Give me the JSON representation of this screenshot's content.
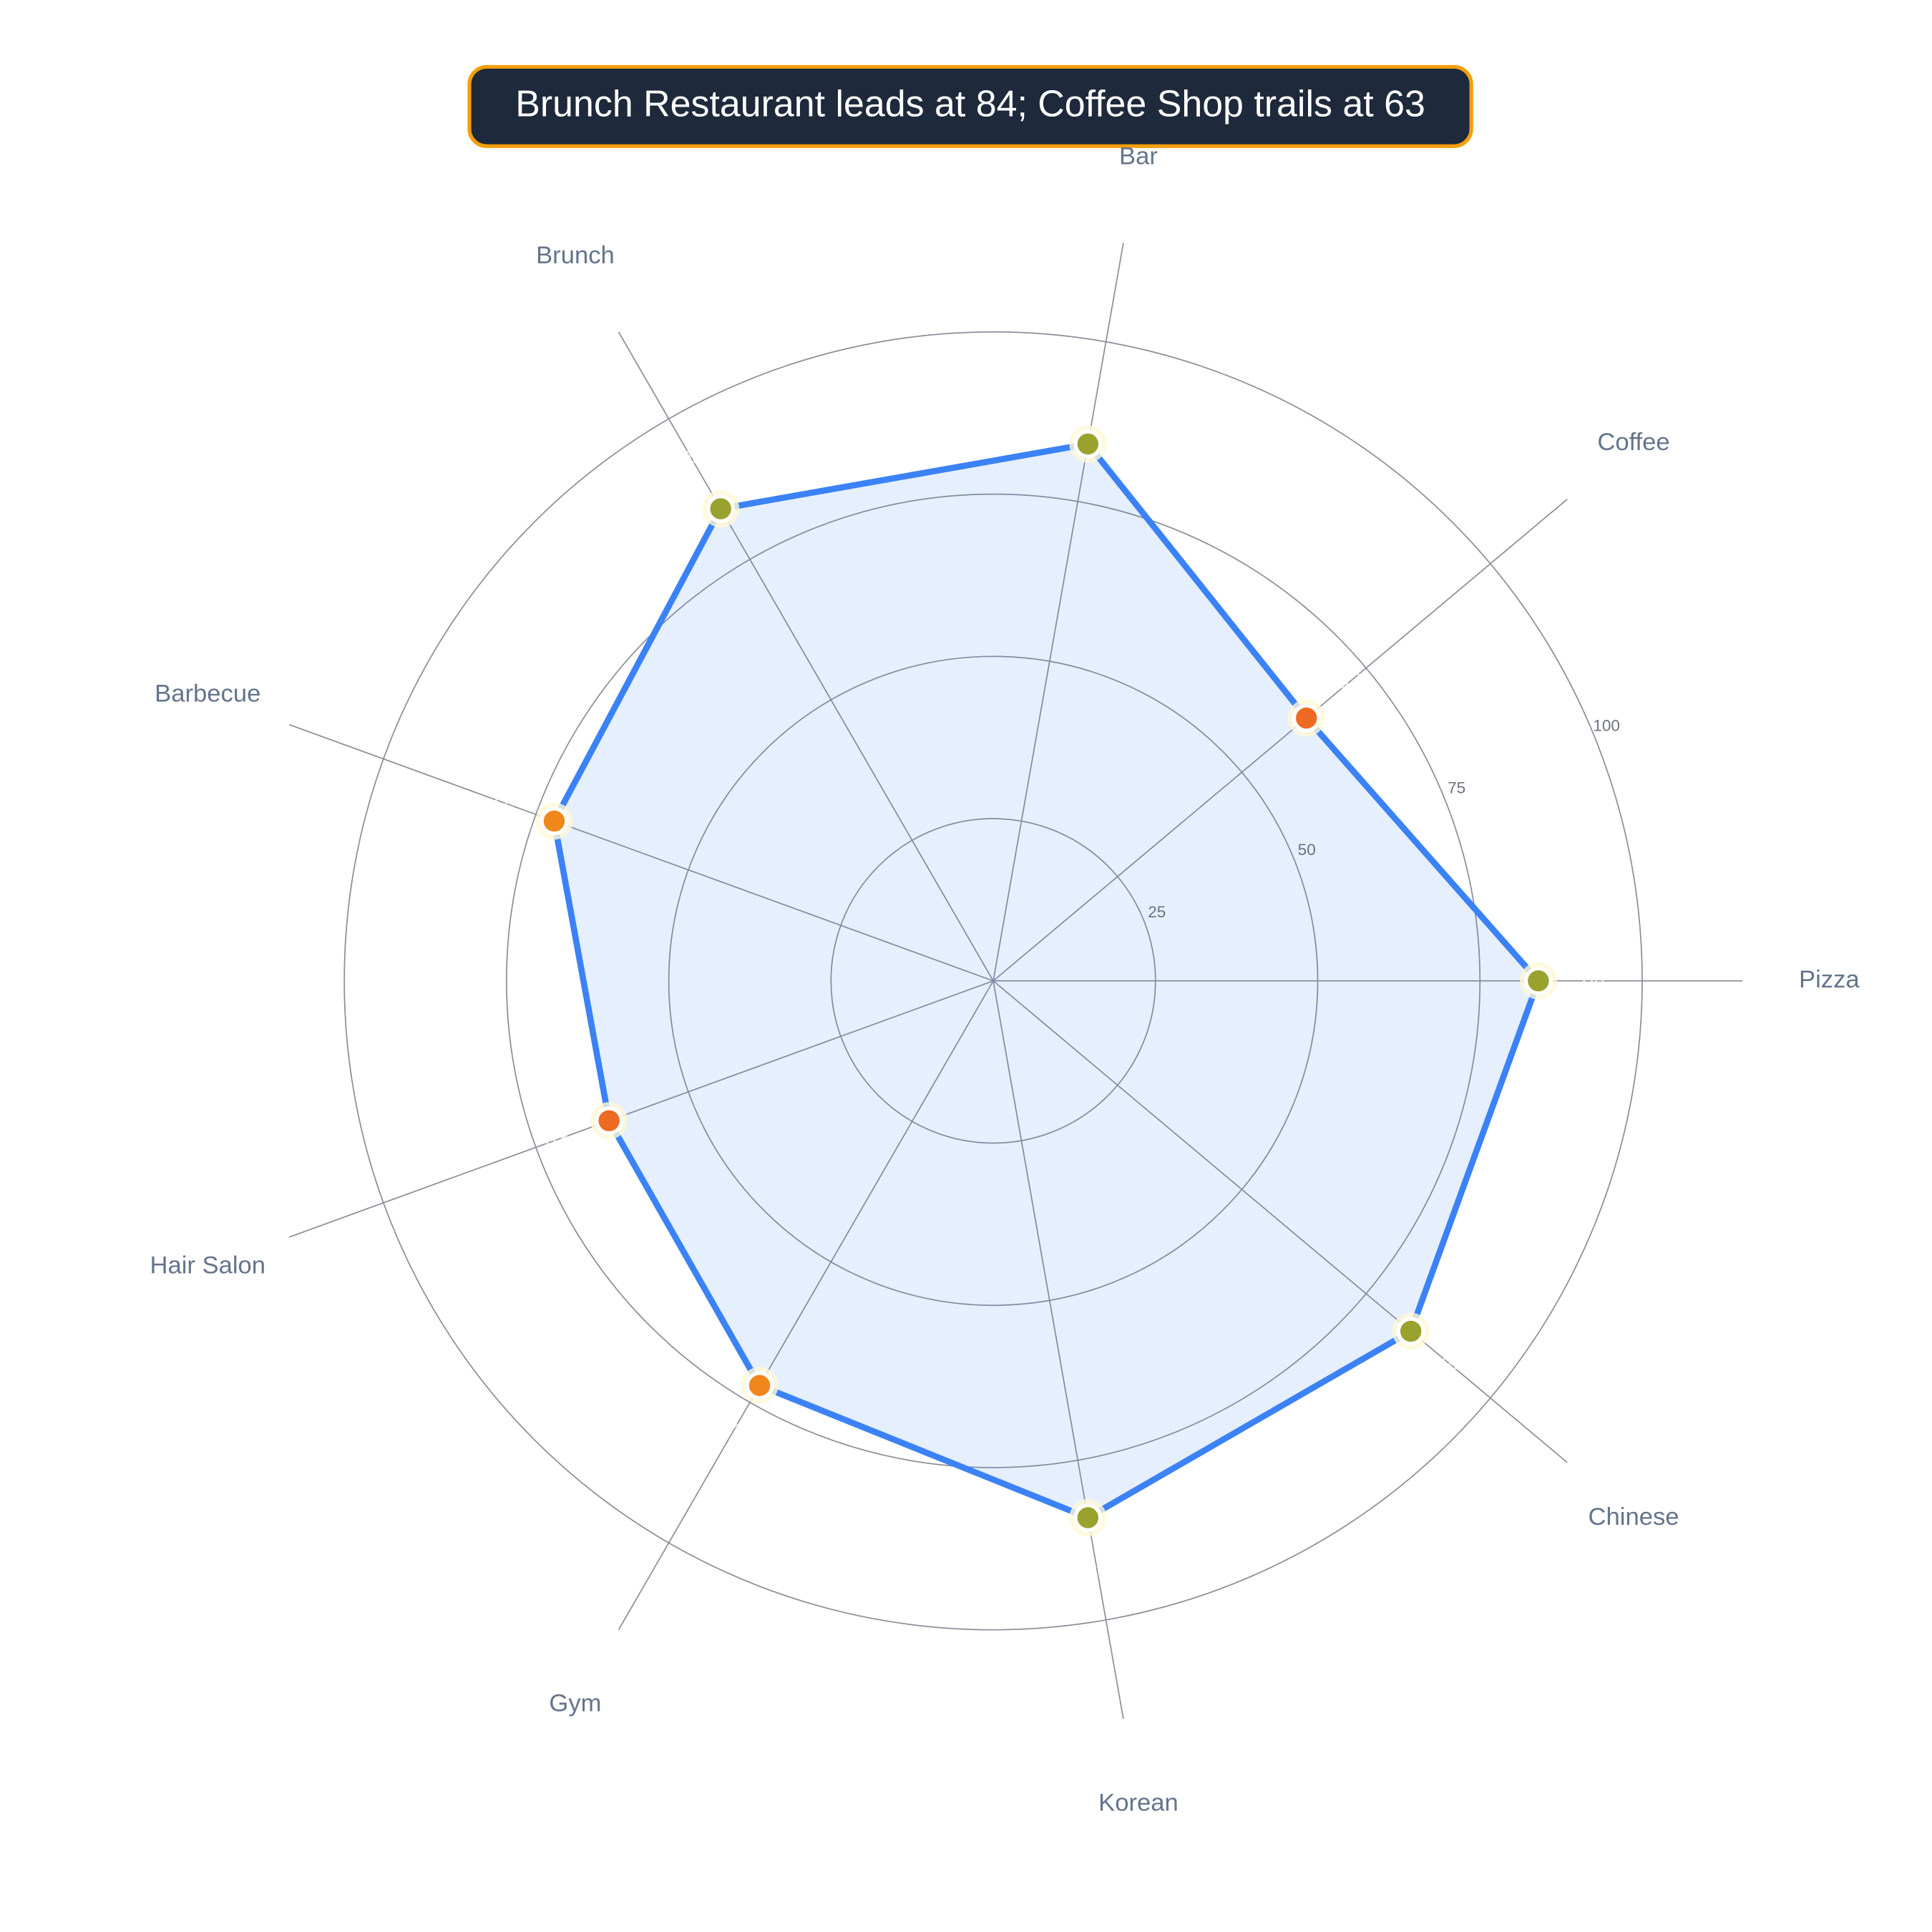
{
  "chart_data": {
    "type": "radar",
    "title": "Brunch Restaurant leads at 84; Coffee Shop trails at 63",
    "categories": [
      "Pizza",
      "Coffee",
      "Bar",
      "Brunch",
      "Barbecue",
      "Hair Salon",
      "Gym",
      "Korean",
      "Chinese"
    ],
    "values": [
      84,
      63,
      84,
      84,
      72,
      63,
      72,
      84,
      84
    ],
    "colors": [
      "#9aa22e",
      "#ee6a22",
      "#9aa22e",
      "#9aa22e",
      "#f0871a",
      "#ee6a22",
      "#f0871a",
      "#9aa22e",
      "#9aa22e"
    ],
    "color": "#3b82f6",
    "rlim": [
      0,
      100
    ],
    "rticks": [
      25,
      50,
      75,
      100
    ],
    "grid": true
  }
}
